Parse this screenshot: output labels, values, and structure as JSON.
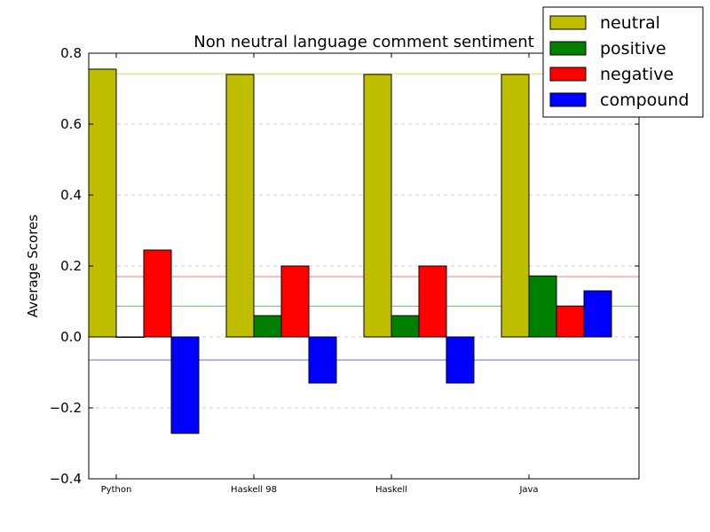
{
  "chart_data": {
    "type": "bar",
    "title": "Non neutral language comment sentiment",
    "xlabel": "",
    "ylabel": "Average Scores",
    "ylim": [
      -0.4,
      0.8
    ],
    "yticks": [
      -0.4,
      -0.2,
      0.0,
      0.2,
      0.4,
      0.6,
      0.8
    ],
    "ytick_labels": [
      "−0.4",
      "−0.2",
      "0.0",
      "0.2",
      "0.4",
      "0.6",
      "0.8"
    ],
    "grid": true,
    "legend_position": "top-right",
    "categories": [
      "Python",
      "Haskell 98",
      "Haskell",
      "Java"
    ],
    "series": [
      {
        "name": "neutral",
        "color": "#bfbf00",
        "values": [
          0.755,
          0.74,
          0.74,
          0.74
        ]
      },
      {
        "name": "positive",
        "color": "#008000",
        "values": [
          0.0,
          0.06,
          0.06,
          0.172
        ]
      },
      {
        "name": "negative",
        "color": "#ff0000",
        "values": [
          0.245,
          0.2,
          0.2,
          0.087
        ]
      },
      {
        "name": "compound",
        "color": "#0000ff",
        "values": [
          -0.272,
          -0.13,
          -0.13,
          0.13
        ]
      }
    ],
    "reference_lines": [
      {
        "series": "neutral",
        "color": "#dddd55",
        "value": 0.742
      },
      {
        "series": "positive",
        "color": "#66bb66",
        "value": 0.087
      },
      {
        "series": "negative",
        "color": "#ff7777",
        "value": 0.17
      },
      {
        "series": "compound",
        "color": "#6666ff",
        "value": -0.065
      }
    ]
  }
}
